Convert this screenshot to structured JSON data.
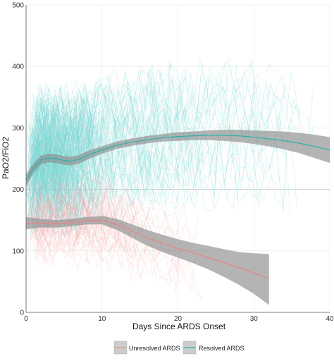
{
  "chart_data": {
    "type": "line",
    "title": "",
    "xlabel": "Days Since ARDS Onset",
    "ylabel": "PaO2/FiO2",
    "xlim": [
      0,
      40
    ],
    "ylim": [
      0,
      500
    ],
    "xticks": [
      "0",
      "10",
      "20",
      "30",
      "40"
    ],
    "yticks": [
      "0",
      "100",
      "200",
      "300",
      "400",
      "500"
    ],
    "grid": true,
    "reference_line_y": 200,
    "legend_position": "bottom",
    "series": [
      {
        "name": "Unresolved ARDS",
        "color": "#f08080",
        "x": [
          0,
          2,
          4,
          6,
          8,
          10,
          12,
          14,
          16,
          18,
          20,
          22,
          24,
          26,
          28,
          30,
          32
        ],
        "y": [
          145,
          145,
          144,
          146,
          149,
          150,
          143,
          132,
          121,
          112,
          104,
          97,
          89,
          81,
          73,
          64,
          55
        ],
        "ci_upper": [
          155,
          152,
          150,
          152,
          155,
          157,
          152,
          143,
          134,
          126,
          119,
          113,
          108,
          103,
          98,
          96,
          95
        ],
        "ci_lower": [
          135,
          138,
          138,
          140,
          143,
          143,
          134,
          121,
          108,
          98,
          89,
          80,
          70,
          58,
          45,
          30,
          12
        ]
      },
      {
        "name": "Resolved ARDS",
        "color": "#20b2aa",
        "x": [
          0,
          1,
          2,
          3,
          4,
          5,
          6,
          7,
          8,
          10,
          12,
          14,
          16,
          18,
          20,
          22,
          24,
          26,
          28,
          30,
          32,
          34,
          36,
          38,
          40
        ],
        "y": [
          215,
          235,
          248,
          251,
          250,
          247,
          246,
          249,
          255,
          264,
          272,
          277,
          281,
          284,
          286,
          287,
          288,
          288,
          287,
          285,
          282,
          279,
          275,
          270,
          264
        ],
        "ci_upper": [
          225,
          243,
          255,
          258,
          257,
          254,
          253,
          256,
          262,
          270,
          278,
          283,
          287,
          290,
          293,
          294,
          296,
          297,
          297,
          296,
          295,
          294,
          292,
          289,
          285
        ],
        "ci_lower": [
          205,
          227,
          241,
          244,
          243,
          240,
          239,
          242,
          248,
          258,
          266,
          271,
          275,
          278,
          279,
          280,
          280,
          279,
          277,
          274,
          270,
          265,
          259,
          251,
          243
        ]
      }
    ],
    "legend": [
      "Unresolved ARDS",
      "Resolved ARDS"
    ],
    "colors": {
      "unresolved": "#f08080",
      "resolved": "#20b2aa",
      "ci_band": "#8c8c8c",
      "spaghetti_resolved": "#7fd8d4",
      "spaghetti_unresolved": "#f4a6a6",
      "gridline": "#e6e6e6",
      "legend_bg": "#cccccc"
    }
  }
}
